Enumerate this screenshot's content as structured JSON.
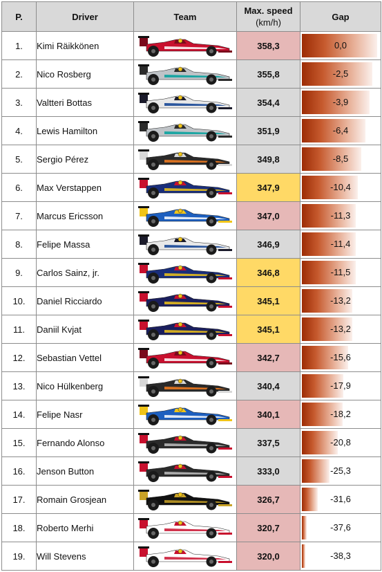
{
  "headers": {
    "pos": "P.",
    "driver": "Driver",
    "team": "Team",
    "speed_line1": "Max. speed",
    "speed_line2": "(km/h)",
    "gap": "Gap"
  },
  "colors": {
    "red": "#e6b8b7",
    "grey": "#d9d9d9",
    "yellow": "#ffd966",
    "gap_bar_dark": "#9c2c05"
  },
  "rows": [
    {
      "pos": "1.",
      "driver": "Kimi Räikkönen",
      "team_car": "ferrari-car-icon",
      "speed": "358,3",
      "gap": "0,0",
      "speed_color": "red",
      "gap_value": 0.0
    },
    {
      "pos": "2.",
      "driver": "Nico Rosberg",
      "team_car": "mercedes-car-icon",
      "speed": "355,8",
      "gap": "-2,5",
      "speed_color": "grey",
      "gap_value": -2.5
    },
    {
      "pos": "3.",
      "driver": "Valtteri Bottas",
      "team_car": "williams-car-icon",
      "speed": "354,4",
      "gap": "-3,9",
      "speed_color": "grey",
      "gap_value": -3.9
    },
    {
      "pos": "4.",
      "driver": "Lewis Hamilton",
      "team_car": "mercedes-car-icon",
      "speed": "351,9",
      "gap": "-6,4",
      "speed_color": "grey",
      "gap_value": -6.4
    },
    {
      "pos": "5.",
      "driver": "Sergio Pérez",
      "team_car": "force-india-car-icon",
      "speed": "349,8",
      "gap": "-8,5",
      "speed_color": "grey",
      "gap_value": -8.5
    },
    {
      "pos": "6.",
      "driver": "Max Verstappen",
      "team_car": "toro-rosso-car-icon",
      "speed": "347,9",
      "gap": "-10,4",
      "speed_color": "yellow",
      "gap_value": -10.4
    },
    {
      "pos": "7.",
      "driver": "Marcus Ericsson",
      "team_car": "sauber-car-icon",
      "speed": "347,0",
      "gap": "-11,3",
      "speed_color": "red",
      "gap_value": -11.3
    },
    {
      "pos": "8.",
      "driver": "Felipe Massa",
      "team_car": "williams-car-icon",
      "speed": "346,9",
      "gap": "-11,4",
      "speed_color": "grey",
      "gap_value": -11.4
    },
    {
      "pos": "9.",
      "driver": "Carlos Sainz, jr.",
      "team_car": "toro-rosso-car-icon",
      "speed": "346,8",
      "gap": "-11,5",
      "speed_color": "yellow",
      "gap_value": -11.5
    },
    {
      "pos": "10.",
      "driver": "Daniel Ricciardo",
      "team_car": "red-bull-car-icon",
      "speed": "345,1",
      "gap": "-13,2",
      "speed_color": "yellow",
      "gap_value": -13.2
    },
    {
      "pos": "11.",
      "driver": "Daniil Kvjat",
      "team_car": "red-bull-car-icon",
      "speed": "345,1",
      "gap": "-13,2",
      "speed_color": "yellow",
      "gap_value": -13.2
    },
    {
      "pos": "12.",
      "driver": "Sebastian Vettel",
      "team_car": "ferrari-car-icon",
      "speed": "342,7",
      "gap": "-15,6",
      "speed_color": "red",
      "gap_value": -15.6
    },
    {
      "pos": "13.",
      "driver": "Nico Hülkenberg",
      "team_car": "force-india-car-icon",
      "speed": "340,4",
      "gap": "-17,9",
      "speed_color": "grey",
      "gap_value": -17.9
    },
    {
      "pos": "14.",
      "driver": "Felipe Nasr",
      "team_car": "sauber-car-icon",
      "speed": "340,1",
      "gap": "-18,2",
      "speed_color": "red",
      "gap_value": -18.2
    },
    {
      "pos": "15.",
      "driver": "Fernando Alonso",
      "team_car": "mclaren-car-icon",
      "speed": "337,5",
      "gap": "-20,8",
      "speed_color": "grey",
      "gap_value": -20.8
    },
    {
      "pos": "16.",
      "driver": "Jenson Button",
      "team_car": "mclaren-car-icon",
      "speed": "333,0",
      "gap": "-25,3",
      "speed_color": "grey",
      "gap_value": -25.3
    },
    {
      "pos": "17.",
      "driver": "Romain Grosjean",
      "team_car": "lotus-car-icon",
      "speed": "326,7",
      "gap": "-31,6",
      "speed_color": "red",
      "gap_value": -31.6
    },
    {
      "pos": "18.",
      "driver": "Roberto Merhi",
      "team_car": "manor-car-icon",
      "speed": "320,7",
      "gap": "-37,6",
      "speed_color": "red",
      "gap_value": -37.6
    },
    {
      "pos": "19.",
      "driver": "Will Stevens",
      "team_car": "manor-car-icon",
      "speed": "320,0",
      "gap": "-38,3",
      "speed_color": "red",
      "gap_value": -38.3
    }
  ]
}
